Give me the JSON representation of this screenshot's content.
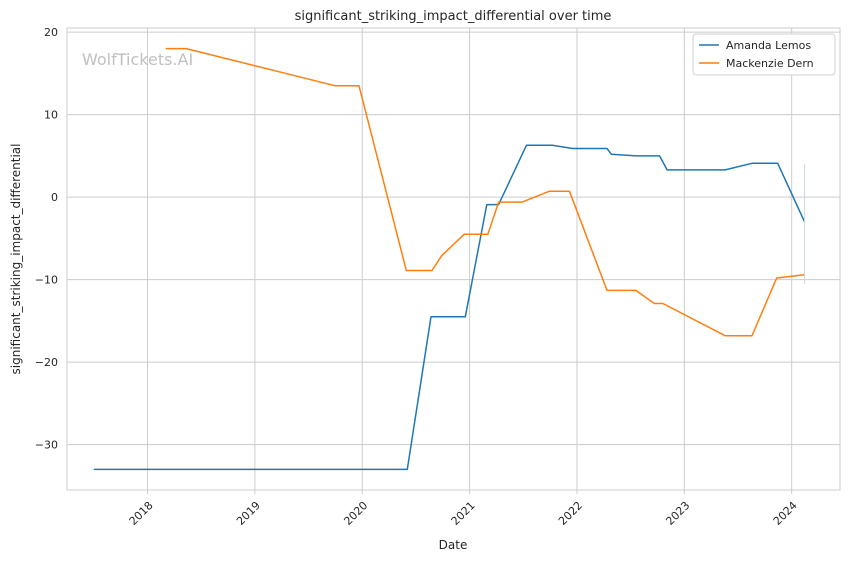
{
  "chart_data": {
    "type": "line",
    "title": "significant_striking_impact_differential over time",
    "xlabel": "Date",
    "ylabel": "significant_striking_impact_differential",
    "watermark": "WolfTickets.AI",
    "xlim": [
      2017.25,
      2024.45
    ],
    "ylim": [
      -35.5,
      20.5
    ],
    "x_ticks": [
      2018,
      2019,
      2020,
      2021,
      2022,
      2023,
      2024
    ],
    "x_tick_labels": [
      "2018",
      "2019",
      "2020",
      "2021",
      "2022",
      "2023",
      "2024"
    ],
    "y_ticks": [
      20,
      10,
      0,
      -10,
      -20,
      -30
    ],
    "y_tick_labels": [
      "20",
      "10",
      "0",
      "−10",
      "−20",
      "−30"
    ],
    "grid": true,
    "legend_position": "top-right",
    "series": [
      {
        "name": "Amanda Lemos",
        "color": "#1f77b4",
        "points": [
          [
            2017.5,
            -33.0
          ],
          [
            2020.42,
            -33.0
          ],
          [
            2020.64,
            -14.5
          ],
          [
            2020.96,
            -14.5
          ],
          [
            2021.16,
            -0.9
          ],
          [
            2021.27,
            -0.9
          ],
          [
            2021.53,
            6.3
          ],
          [
            2021.77,
            6.3
          ],
          [
            2021.96,
            5.9
          ],
          [
            2022.28,
            5.9
          ],
          [
            2022.32,
            5.2
          ],
          [
            2022.55,
            5.0
          ],
          [
            2022.77,
            5.0
          ],
          [
            2022.84,
            3.3
          ],
          [
            2023.38,
            3.3
          ],
          [
            2023.63,
            4.1
          ],
          [
            2023.87,
            4.1
          ],
          [
            2024.12,
            -3.0
          ]
        ]
      },
      {
        "name": "Mackenzie Dern",
        "color": "#ff7f0e",
        "points": [
          [
            2018.17,
            18.0
          ],
          [
            2018.36,
            18.0
          ],
          [
            2019.75,
            13.5
          ],
          [
            2019.97,
            13.5
          ],
          [
            2020.41,
            -8.9
          ],
          [
            2020.65,
            -8.9
          ],
          [
            2020.74,
            -7.1
          ],
          [
            2020.95,
            -4.5
          ],
          [
            2021.17,
            -4.5
          ],
          [
            2021.27,
            -0.6
          ],
          [
            2021.49,
            -0.6
          ],
          [
            2021.74,
            0.7
          ],
          [
            2021.93,
            0.7
          ],
          [
            2022.28,
            -11.3
          ],
          [
            2022.55,
            -11.3
          ],
          [
            2022.72,
            -12.9
          ],
          [
            2022.8,
            -12.9
          ],
          [
            2023.38,
            -16.8
          ],
          [
            2023.63,
            -16.8
          ],
          [
            2023.86,
            -9.8
          ],
          [
            2024.12,
            -9.4
          ]
        ]
      }
    ]
  }
}
